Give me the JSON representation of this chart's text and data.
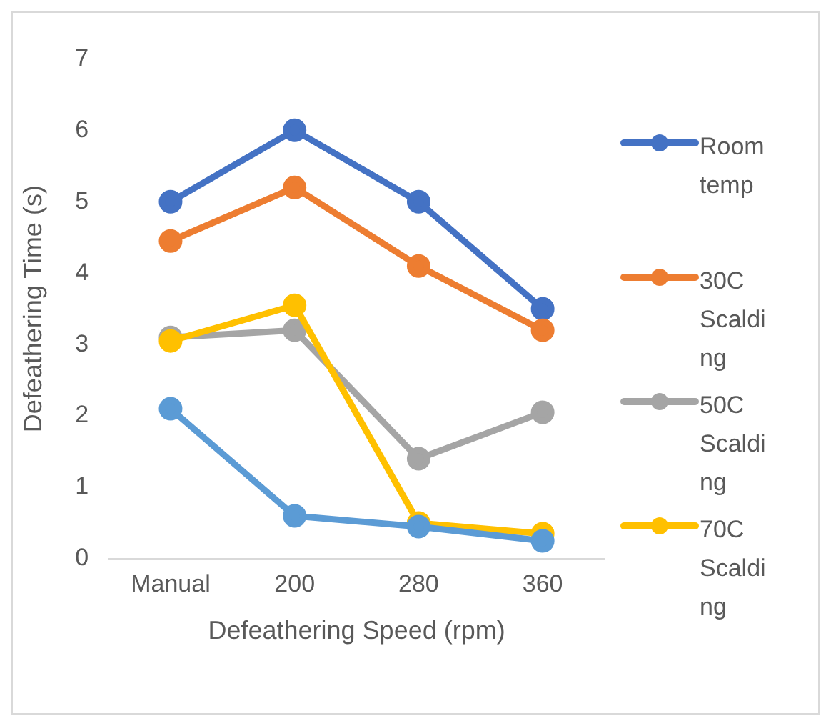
{
  "chart_data": {
    "type": "line",
    "xlabel": "Defeathering Speed (rpm)",
    "ylabel": "Defeathering Time (s)",
    "categories": [
      "Manual",
      "200",
      "280",
      "360"
    ],
    "series": [
      {
        "name": "Room temp",
        "color": "#4472c4",
        "values": [
          5,
          6,
          5,
          3.5
        ]
      },
      {
        "name": "30C Scalding",
        "color": "#ed7d31",
        "values": [
          4.45,
          5.2,
          4.1,
          3.2
        ]
      },
      {
        "name": "50C Scalding",
        "color": "#a5a5a5",
        "values": [
          3.1,
          3.2,
          1.4,
          2.05
        ]
      },
      {
        "name": "70C Scalding",
        "color": "#ffc000",
        "values": [
          3.05,
          3.55,
          0.5,
          0.35
        ]
      },
      {
        "color": "#5b9bd5",
        "values": [
          2.1,
          0.6,
          0.45,
          0.25
        ]
      }
    ],
    "ylim": [
      0,
      7
    ],
    "yticks": [
      0,
      1,
      2,
      3,
      4,
      5,
      6,
      7
    ],
    "grid": false,
    "legend": "right",
    "marker": "circle",
    "line_style": "solid"
  }
}
